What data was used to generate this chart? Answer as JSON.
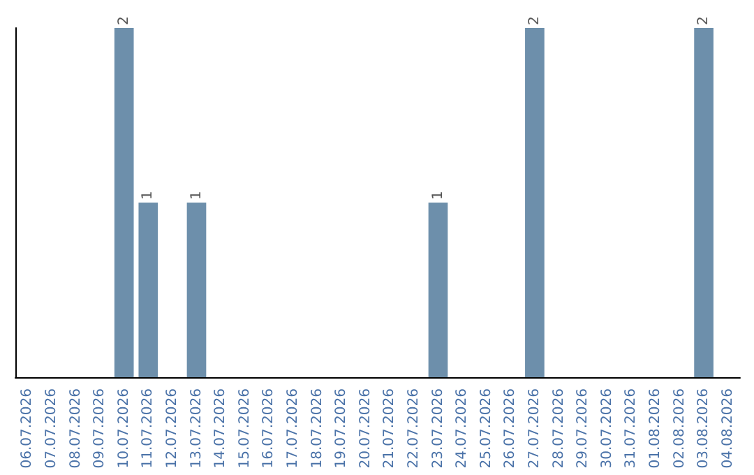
{
  "chart_data": {
    "type": "bar",
    "categories": [
      "06.07.2026",
      "07.07.2026",
      "08.07.2026",
      "09.07.2026",
      "10.07.2026",
      "11.07.2026",
      "12.07.2026",
      "13.07.2026",
      "14.07.2026",
      "15.07.2026",
      "16.07.2026",
      "17.07.2026",
      "18.07.2026",
      "19.07.2026",
      "20.07.2026",
      "21.07.2026",
      "22.07.2026",
      "23.07.2026",
      "24.07.2026",
      "25.07.2026",
      "26.07.2026",
      "27.07.2026",
      "28.07.2026",
      "29.07.2026",
      "30.07.2026",
      "31.07.2026",
      "01.08.2026",
      "02.08.2026",
      "03.08.2026",
      "04.08.2026"
    ],
    "values": [
      0,
      0,
      0,
      0,
      2,
      1,
      0,
      1,
      0,
      0,
      0,
      0,
      0,
      0,
      0,
      0,
      0,
      1,
      0,
      0,
      0,
      2,
      0,
      0,
      0,
      0,
      0,
      0,
      2,
      0
    ],
    "value_labels": [
      null,
      null,
      null,
      null,
      "2",
      "1",
      null,
      "1",
      null,
      null,
      null,
      null,
      null,
      null,
      null,
      null,
      null,
      "1",
      null,
      null,
      null,
      "2",
      null,
      null,
      null,
      null,
      null,
      null,
      "2",
      null
    ],
    "color": "#6d8fab",
    "tick_labels": "x"
  }
}
